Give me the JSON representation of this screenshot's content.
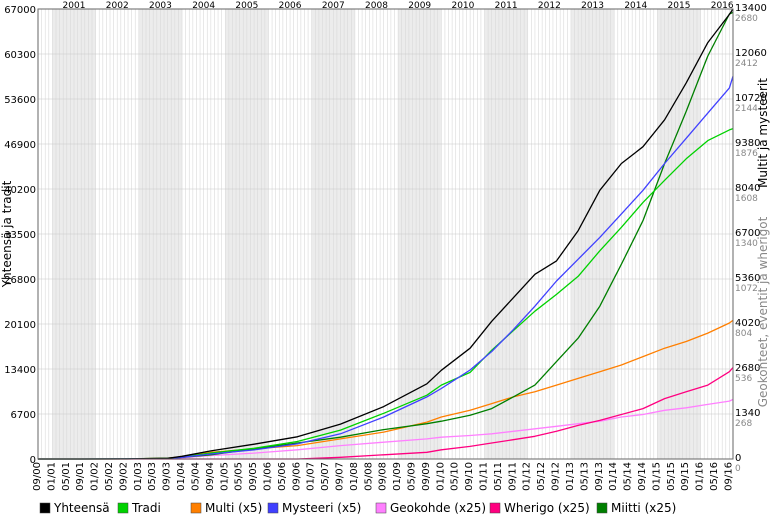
{
  "chart_data": {
    "type": "line",
    "ylabel_left": "Yhteensä ja tradit",
    "ylabel_right_outer": "Multit ja mysteerit",
    "ylabel_right_inner": "Geokohteet, eventit ja wherigot",
    "ylim_left": [
      0,
      67000
    ],
    "ylim_right_outer": [
      0,
      13400
    ],
    "ylim_right_inner": [
      0,
      2680
    ],
    "left_ticks": [
      "0",
      "6700",
      "13400",
      "20100",
      "26800",
      "33500",
      "40200",
      "46900",
      "53600",
      "60300",
      "67000"
    ],
    "right_outer_ticks": [
      "0",
      "1340",
      "2680",
      "4020",
      "5360",
      "6700",
      "8040",
      "9380",
      "10720",
      "12060",
      "13400"
    ],
    "right_inner_ticks": [
      "0",
      "268",
      "536",
      "804",
      "1072",
      "1340",
      "1608",
      "1876",
      "2144",
      "2412",
      "2680"
    ],
    "years": [
      "2001",
      "2002",
      "2003",
      "2004",
      "2005",
      "2006",
      "2007",
      "2008",
      "2009",
      "2010",
      "2011",
      "2012",
      "2013",
      "2014",
      "2015",
      "2016"
    ],
    "x_tick_labels": [
      "09/00",
      "01/01",
      "05/01",
      "09/01",
      "01/02",
      "05/02",
      "09/02",
      "01/03",
      "05/03",
      "09/03",
      "01/04",
      "05/04",
      "09/04",
      "01/05",
      "05/05",
      "09/05",
      "01/06",
      "05/06",
      "09/06",
      "01/07",
      "05/07",
      "09/07",
      "01/08",
      "05/08",
      "09/08",
      "01/09",
      "05/09",
      "09/09",
      "01/10",
      "05/10",
      "09/10",
      "01/11",
      "05/11",
      "09/11",
      "01/12",
      "05/12",
      "09/12",
      "01/13",
      "05/13",
      "09/13",
      "01/14",
      "05/14",
      "09/14",
      "01/15",
      "05/15",
      "09/15",
      "01/16",
      "05/16",
      "09/16"
    ],
    "x_dates": [
      "2000-09",
      "2001-09",
      "2002-09",
      "2003-09",
      "2004-01",
      "2004-09",
      "2005-09",
      "2006-09",
      "2007-09",
      "2008-09",
      "2009-09",
      "2010-01",
      "2010-09",
      "2011-03",
      "2011-09",
      "2012-03",
      "2012-09",
      "2013-03",
      "2013-09",
      "2014-03",
      "2014-09",
      "2015-03",
      "2015-09",
      "2016-03",
      "2016-09",
      "2016-10"
    ],
    "series": [
      {
        "name": "Yhteensä",
        "color": "#000000",
        "axis": "left",
        "values": [
          0,
          5,
          15,
          100,
          400,
          1200,
          2200,
          3300,
          5200,
          7800,
          11200,
          13200,
          16500,
          20500,
          24000,
          27500,
          29500,
          34000,
          40000,
          44000,
          46500,
          50500,
          56000,
          62000,
          66200,
          67000
        ]
      },
      {
        "name": "Tradi",
        "color": "#00d200",
        "axis": "left",
        "values": [
          0,
          4,
          12,
          80,
          300,
          900,
          1600,
          2600,
          4300,
          6800,
          9500,
          11000,
          12900,
          16200,
          19100,
          22000,
          24500,
          27200,
          31000,
          34500,
          38200,
          41500,
          44700,
          47400,
          49000,
          49200
        ]
      },
      {
        "name": "Multi (x5)",
        "color": "#ff7f00",
        "axis": "right_outer",
        "values": [
          0,
          0,
          3,
          20,
          70,
          200,
          300,
          400,
          600,
          800,
          1100,
          1250,
          1450,
          1650,
          1850,
          2000,
          2200,
          2400,
          2600,
          2800,
          3050,
          3300,
          3500,
          3750,
          4050,
          4130
        ]
      },
      {
        "name": "Mysteeri (x5)",
        "color": "#4040ff",
        "axis": "right_outer",
        "values": [
          0,
          0,
          2,
          15,
          50,
          150,
          270,
          450,
          750,
          1250,
          1850,
          2100,
          2650,
          3200,
          3850,
          4550,
          5300,
          5950,
          6600,
          7300,
          8000,
          8800,
          9550,
          10300,
          11050,
          11400
        ]
      },
      {
        "name": "Geokohde (x25)",
        "color": "#ff80ff",
        "axis": "right_inner",
        "values": [
          0,
          0,
          0,
          3,
          8,
          20,
          35,
          55,
          80,
          100,
          120,
          130,
          140,
          150,
          165,
          180,
          195,
          210,
          225,
          250,
          265,
          290,
          305,
          325,
          345,
          355
        ]
      },
      {
        "name": "Wherigo (x25)",
        "color": "#ff0080",
        "axis": "right_inner",
        "values": [
          0,
          0,
          0,
          0,
          0,
          0,
          0,
          0,
          10,
          25,
          40,
          55,
          75,
          95,
          115,
          135,
          165,
          200,
          230,
          265,
          300,
          360,
          400,
          440,
          520,
          545
        ]
      },
      {
        "name": "Miitti (x25)",
        "color": "#007f00",
        "axis": "right_inner",
        "values": [
          0,
          0,
          0,
          5,
          10,
          25,
          60,
          95,
          130,
          175,
          210,
          225,
          260,
          300,
          370,
          440,
          580,
          720,
          910,
          1160,
          1420,
          1760,
          2070,
          2400,
          2650,
          2660
        ]
      }
    ],
    "grid": true,
    "legend_position": "bottom"
  }
}
